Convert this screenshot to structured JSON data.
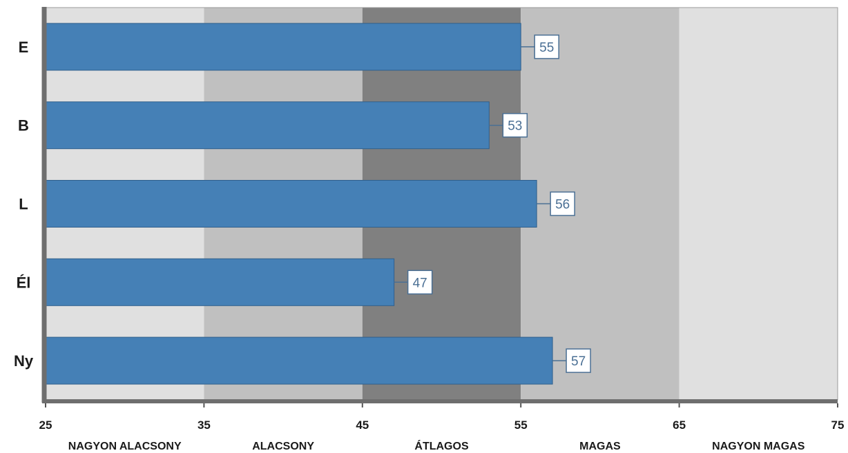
{
  "chart_data": {
    "type": "bar",
    "orientation": "horizontal",
    "categories": [
      "E",
      "B",
      "L",
      "Él",
      "Ny"
    ],
    "values": [
      55,
      53,
      56,
      47,
      57
    ],
    "xlim": [
      25,
      75
    ],
    "xticks": [
      25,
      35,
      45,
      55,
      65,
      75
    ],
    "bands": [
      {
        "from": 25,
        "to": 35,
        "label": "NAGYON ALACSONY",
        "color": "#e0e0e0"
      },
      {
        "from": 35,
        "to": 45,
        "label": "ALACSONY",
        "color": "#c0c0c0"
      },
      {
        "from": 45,
        "to": 55,
        "label": "ÁTLAGOS",
        "color": "#808080"
      },
      {
        "from": 55,
        "to": 65,
        "label": "MAGAS",
        "color": "#c0c0c0"
      },
      {
        "from": 65,
        "to": 75,
        "label": "NAGYON MAGAS",
        "color": "#e0e0e0"
      }
    ],
    "bar_color": "#4580b6",
    "value_label_color": "#4a6f94",
    "data_labels": true,
    "grid": false,
    "title": "",
    "xlabel": "",
    "ylabel": ""
  }
}
